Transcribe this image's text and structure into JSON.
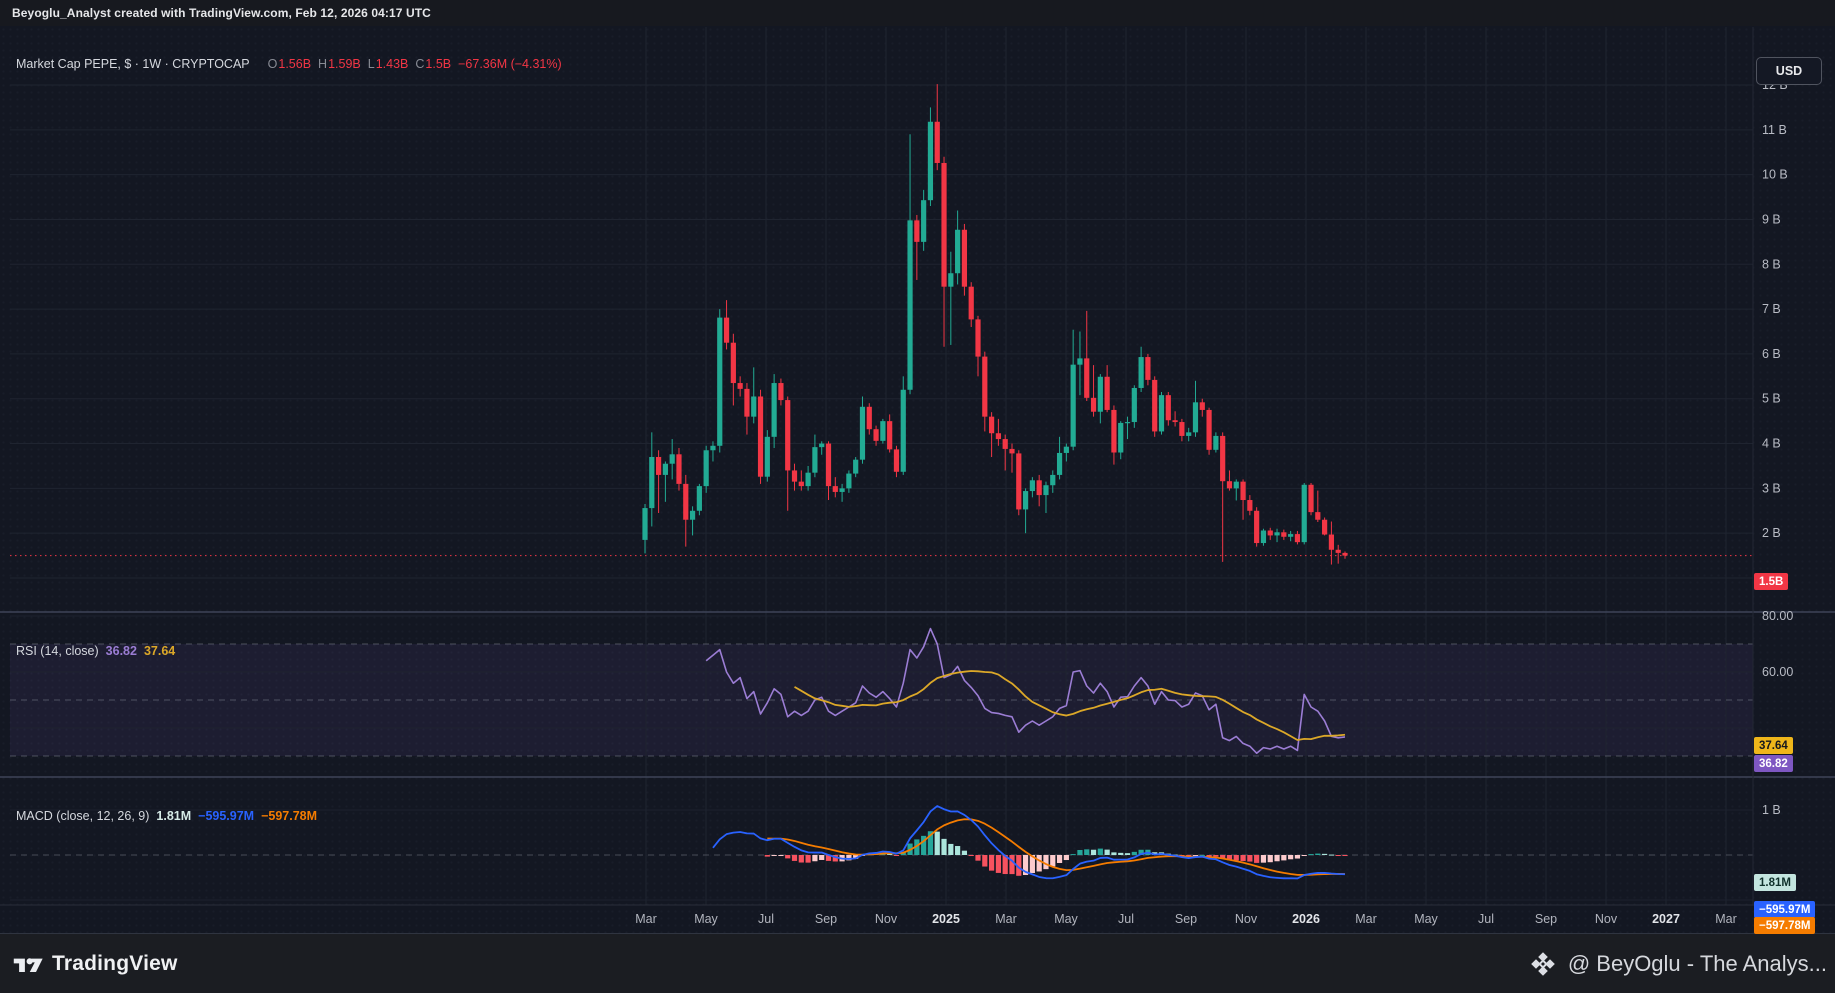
{
  "header": {
    "text": "Beyoglu_Analyst created with TradingView.com, Feb 12, 2026 04:17 UTC"
  },
  "legend": {
    "title": "Market Cap PEPE, $ · 1W · CRYPTOCAP",
    "o_label": "O",
    "o_value": "1.56B",
    "h_label": "H",
    "h_value": "1.59B",
    "l_label": "L",
    "l_value": "1.43B",
    "c_label": "C",
    "c_value": "1.5B",
    "change": "−67.36M (−4.31%)"
  },
  "rsi_legend": {
    "title": "RSI (14, close)",
    "value": "36.82",
    "ma_value": "37.64"
  },
  "macd_legend": {
    "title": "MACD (close, 12, 26, 9)",
    "hist_value": "1.81M",
    "macd_value": "−595.97M",
    "signal_value": "−597.78M"
  },
  "axis": {
    "currency_button": "USD",
    "price_ticks": [
      "12 B",
      "11 B",
      "10 B",
      "9 B",
      "8 B",
      "7 B",
      "6 B",
      "5 B",
      "4 B",
      "3 B",
      "2 B",
      "1 B"
    ],
    "rsi_ticks": [
      {
        "label": "80.00",
        "value": 80
      },
      {
        "label": "60.00",
        "value": 60
      }
    ],
    "macd_ticks": [
      {
        "label": "1 B",
        "value": 1
      }
    ],
    "price_badge": "1.5B",
    "rsi_ma_badge": "37.64",
    "rsi_badge": "36.82",
    "macd_hist_badge": "1.81M",
    "macd_badge": "−595.97M",
    "macd_signal_badge": "−597.78M"
  },
  "footer": {
    "brand": "TradingView",
    "credit": "@ BeyOglu - The Analys..."
  },
  "colors": {
    "up": "#22ab94",
    "down": "#f23645",
    "hist_up": "#26a69a",
    "hist_up_light": "#ace5dc",
    "hist_down": "#f7525f",
    "hist_down_light": "#fccbcd",
    "rsi_line": "#9b7dd4",
    "rsi_ma_line": "#dca828",
    "macd_line": "#2962ff",
    "signal_line": "#f57c00",
    "grid": "#1f2430",
    "divider": "#3e4458",
    "axis_text": "#b8bbc4",
    "time_text": "#b2b5be",
    "time_text_major": "#e3e5ea",
    "dashed_level": "#7b7f8a",
    "rsi_band_fill": "rgba(136,98,214,0.09)",
    "last_price_line": "#f23645"
  },
  "chart_data": {
    "type": "candlestick",
    "title": "Market Cap PEPE",
    "symbol_currency": "$",
    "timeframe": "1W",
    "source": "CRYPTOCAP",
    "unit": "billions USD",
    "ylim": [
      1,
      12.5
    ],
    "y_ticks_B": [
      12,
      11,
      10,
      9,
      8,
      7,
      6,
      5,
      4,
      3,
      2,
      1
    ],
    "last_close_B": 1.5,
    "current_bar": {
      "open": "1.56B",
      "high": "1.59B",
      "low": "1.43B",
      "close": "1.5B",
      "change": "−67.36M",
      "change_pct": "−4.31%"
    },
    "time_labels": [
      "Mar",
      "May",
      "Jul",
      "Sep",
      "Nov",
      "2025",
      "Mar",
      "May",
      "Jul",
      "Sep",
      "Nov",
      "2026",
      "Mar",
      "May",
      "Jul",
      "Sep",
      "Nov",
      "2027",
      "Mar"
    ],
    "candles_ohlc_B": [
      [
        1.85,
        2.65,
        1.55,
        2.56
      ],
      [
        2.56,
        4.25,
        2.15,
        3.7
      ],
      [
        3.7,
        3.85,
        2.45,
        3.3
      ],
      [
        3.3,
        3.6,
        2.7,
        3.55
      ],
      [
        3.55,
        4.1,
        3.2,
        3.76
      ],
      [
        3.76,
        3.9,
        2.95,
        3.1
      ],
      [
        3.1,
        3.3,
        1.7,
        2.3
      ],
      [
        2.3,
        2.6,
        1.95,
        2.5
      ],
      [
        2.5,
        3.1,
        2.4,
        3.05
      ],
      [
        3.05,
        3.95,
        2.9,
        3.85
      ],
      [
        3.85,
        4.05,
        3.6,
        3.95
      ],
      [
        3.95,
        7.0,
        3.8,
        6.81
      ],
      [
        6.81,
        7.2,
        6.1,
        6.25
      ],
      [
        6.25,
        6.45,
        4.85,
        5.35
      ],
      [
        5.35,
        5.5,
        5.05,
        5.22
      ],
      [
        5.22,
        5.35,
        4.2,
        4.6
      ],
      [
        4.6,
        5.7,
        4.45,
        5.05
      ],
      [
        5.05,
        5.2,
        3.1,
        3.26
      ],
      [
        3.26,
        4.3,
        3.15,
        4.15
      ],
      [
        4.15,
        5.55,
        3.9,
        5.35
      ],
      [
        5.35,
        5.45,
        4.85,
        4.97
      ],
      [
        4.97,
        5.05,
        2.5,
        3.4
      ],
      [
        3.4,
        3.55,
        2.95,
        3.15
      ],
      [
        3.15,
        3.4,
        2.95,
        3.05
      ],
      [
        3.05,
        3.5,
        2.95,
        3.35
      ],
      [
        3.35,
        4.2,
        3.25,
        3.92
      ],
      [
        3.92,
        4.05,
        3.75,
        4.0
      ],
      [
        4.0,
        4.05,
        2.74,
        3.05
      ],
      [
        3.05,
        3.25,
        2.8,
        2.92
      ],
      [
        2.92,
        3.1,
        2.7,
        3.0
      ],
      [
        3.0,
        3.4,
        2.9,
        3.33
      ],
      [
        3.33,
        3.7,
        3.25,
        3.64
      ],
      [
        3.64,
        5.05,
        3.55,
        4.82
      ],
      [
        4.82,
        4.9,
        4.2,
        4.32
      ],
      [
        4.32,
        4.4,
        3.95,
        4.06
      ],
      [
        4.06,
        4.55,
        4.0,
        4.5
      ],
      [
        4.5,
        4.65,
        3.8,
        3.87
      ],
      [
        3.87,
        3.95,
        3.25,
        3.37
      ],
      [
        3.37,
        5.5,
        3.3,
        5.2
      ],
      [
        5.2,
        10.9,
        5.1,
        8.98
      ],
      [
        8.98,
        9.1,
        7.65,
        8.5
      ],
      [
        8.5,
        9.66,
        8.3,
        9.43
      ],
      [
        9.43,
        11.5,
        9.3,
        11.18
      ],
      [
        11.18,
        12.02,
        10.1,
        10.26
      ],
      [
        10.26,
        10.4,
        6.16,
        7.5
      ],
      [
        7.5,
        8.28,
        6.2,
        7.8
      ],
      [
        7.8,
        9.2,
        7.55,
        8.77
      ],
      [
        8.77,
        8.9,
        7.3,
        7.5
      ],
      [
        7.5,
        7.6,
        6.6,
        6.77
      ],
      [
        6.77,
        6.85,
        5.5,
        5.94
      ],
      [
        5.94,
        6.05,
        4.27,
        4.6
      ],
      [
        4.6,
        4.7,
        3.7,
        4.23
      ],
      [
        4.23,
        4.55,
        3.95,
        4.1
      ],
      [
        4.1,
        4.2,
        3.4,
        3.88
      ],
      [
        3.88,
        4.0,
        3.35,
        3.78
      ],
      [
        3.78,
        3.85,
        2.4,
        2.53
      ],
      [
        2.53,
        3.0,
        2.0,
        2.94
      ],
      [
        2.94,
        3.25,
        2.8,
        3.18
      ],
      [
        3.18,
        3.3,
        2.6,
        2.85
      ],
      [
        2.85,
        3.15,
        2.45,
        3.07
      ],
      [
        3.07,
        3.4,
        2.9,
        3.3
      ],
      [
        3.3,
        4.15,
        3.2,
        3.79
      ],
      [
        3.79,
        4.0,
        3.6,
        3.93
      ],
      [
        3.93,
        6.54,
        3.85,
        5.76
      ],
      [
        5.76,
        6.5,
        5.08,
        5.9
      ],
      [
        5.9,
        6.96,
        4.95,
        5.02
      ],
      [
        5.02,
        5.75,
        4.6,
        4.71
      ],
      [
        4.71,
        5.55,
        4.45,
        5.49
      ],
      [
        5.49,
        5.75,
        4.7,
        4.75
      ],
      [
        4.75,
        4.85,
        3.53,
        3.8
      ],
      [
        3.8,
        4.5,
        3.65,
        4.46
      ],
      [
        4.46,
        4.6,
        4.1,
        4.48
      ],
      [
        4.48,
        5.3,
        4.35,
        5.24
      ],
      [
        5.24,
        6.16,
        5.15,
        5.93
      ],
      [
        5.93,
        6.0,
        5.3,
        5.42
      ],
      [
        5.42,
        5.5,
        4.15,
        4.27
      ],
      [
        4.27,
        5.15,
        4.2,
        5.08
      ],
      [
        5.08,
        5.15,
        4.4,
        4.52
      ],
      [
        4.52,
        4.72,
        4.38,
        4.48
      ],
      [
        4.48,
        4.55,
        4.05,
        4.17
      ],
      [
        4.17,
        4.35,
        4.05,
        4.25
      ],
      [
        4.25,
        5.4,
        4.15,
        4.92
      ],
      [
        4.92,
        5.0,
        4.6,
        4.75
      ],
      [
        4.75,
        4.8,
        3.75,
        3.86
      ],
      [
        3.86,
        4.25,
        3.8,
        4.17
      ],
      [
        4.17,
        4.25,
        1.36,
        3.16
      ],
      [
        3.16,
        3.4,
        2.95,
        3.0
      ],
      [
        3.0,
        3.2,
        2.73,
        3.15
      ],
      [
        3.15,
        3.2,
        2.3,
        2.74
      ],
      [
        2.74,
        2.85,
        2.4,
        2.5
      ],
      [
        2.5,
        2.58,
        1.7,
        1.78
      ],
      [
        1.78,
        2.1,
        1.72,
        2.06
      ],
      [
        2.06,
        2.12,
        1.85,
        1.95
      ],
      [
        1.95,
        2.1,
        1.8,
        2.02
      ],
      [
        2.02,
        2.08,
        1.85,
        1.92
      ],
      [
        1.92,
        2.05,
        1.82,
        1.98
      ],
      [
        1.98,
        2.05,
        1.75,
        1.8
      ],
      [
        1.8,
        3.12,
        1.75,
        3.08
      ],
      [
        3.08,
        3.12,
        2.4,
        2.47
      ],
      [
        2.47,
        2.95,
        2.25,
        2.3
      ],
      [
        2.3,
        2.35,
        1.95,
        1.97
      ],
      [
        1.97,
        2.26,
        1.3,
        1.63
      ],
      [
        1.63,
        1.74,
        1.32,
        1.56
      ],
      [
        1.56,
        1.59,
        1.43,
        1.5
      ]
    ],
    "rsi": {
      "period": 14,
      "source": "close",
      "ma_period": 14,
      "levels": [
        70,
        50,
        30
      ],
      "current": 36.82,
      "ma_current": 37.64,
      "start_index": 9,
      "values": [
        64,
        66,
        68,
        60,
        56,
        58,
        50.5,
        53,
        45,
        49,
        54,
        52,
        44,
        46,
        44.5,
        46,
        50,
        51,
        46,
        44.5,
        46,
        47.5,
        49,
        55,
        52.5,
        51,
        53,
        50.5,
        47.5,
        56,
        68,
        65,
        69,
        75.5,
        70,
        58,
        59,
        62,
        57,
        54.5,
        51.5,
        47,
        45.5,
        45.2,
        44.5,
        44,
        38.5,
        41,
        42.5,
        41,
        42.5,
        44,
        47,
        48,
        60,
        60.5,
        55,
        52.5,
        56,
        53,
        47.5,
        51,
        51.2,
        55,
        58,
        55,
        48.5,
        53,
        50,
        49.8,
        47.5,
        48.5,
        52.5,
        51.5,
        46.5,
        48.5,
        36.5,
        35.5,
        37,
        34.5,
        33.5,
        31,
        33,
        32.5,
        33.5,
        32.5,
        33.5,
        32,
        52,
        47.5,
        46,
        42.5,
        37,
        36.5,
        36.82
      ]
    },
    "macd": {
      "source": "close",
      "fast": 12,
      "slow": 26,
      "signal": 9,
      "current_hist": "1.81M",
      "current_macd": "−595.97M",
      "current_signal": "−597.78M"
    }
  }
}
